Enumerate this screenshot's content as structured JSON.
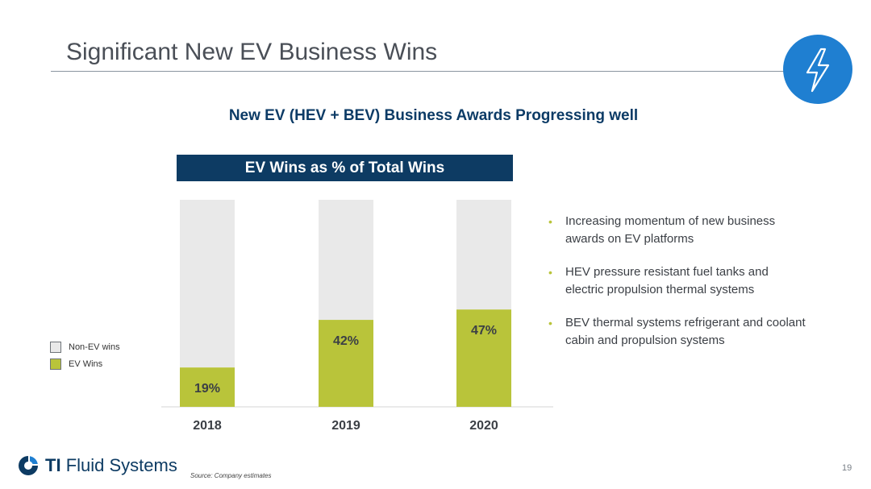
{
  "slide": {
    "title": "Significant New EV Business Wins",
    "subtitle": "New EV (HEV + BEV) Business Awards Progressing well",
    "icon": "lightning-bolt-icon",
    "accent_color": "#1f7fd1"
  },
  "chart_data": {
    "type": "bar",
    "stacked": true,
    "title": "EV Wins as % of Total Wins",
    "categories": [
      "2018",
      "2019",
      "2020"
    ],
    "ylim": [
      0,
      100
    ],
    "grid": false,
    "legend": "left",
    "series": [
      {
        "name": "Non-EV wins",
        "values": [
          81,
          58,
          53
        ],
        "color": "#e9e9e9"
      },
      {
        "name": "EV Wins",
        "values": [
          19,
          42,
          47
        ],
        "color": "#b9c43a",
        "labels": [
          "19%",
          "42%",
          "47%"
        ]
      }
    ]
  },
  "legend": {
    "items": [
      {
        "label": "Non-EV wins",
        "color": "#e9e9e9"
      },
      {
        "label": "EV Wins",
        "color": "#b9c43a"
      }
    ]
  },
  "bullets": [
    "Increasing momentum of new business awards on EV platforms",
    "HEV pressure resistant fuel tanks and electric propulsion thermal systems",
    "BEV thermal systems refrigerant and coolant cabin and propulsion systems"
  ],
  "footer": {
    "logo_ti": "TI",
    "logo_name": "Fluid Systems",
    "source": "Source: Company estimates",
    "page_number": "19"
  }
}
